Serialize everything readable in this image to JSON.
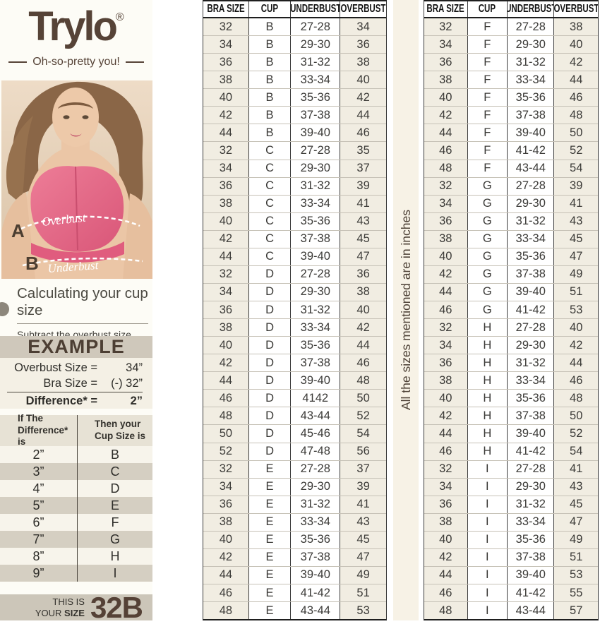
{
  "brand": {
    "logo": "Trylo",
    "registered": "®",
    "tagline": "Oh-so-pretty you!"
  },
  "figure": {
    "label_a": "A",
    "label_b": "B",
    "overbust": "Overbust",
    "underbust": "Underbust"
  },
  "calc": {
    "heading": "Calculating your cup size",
    "body": "Subtract the overbust size from the bra size to detemine your cup size."
  },
  "example": {
    "title": "EXAMPLE",
    "rows": [
      {
        "label": "Overbust Size =",
        "value": "34”"
      },
      {
        "label": "Bra Size =",
        "value": "(-) 32”"
      },
      {
        "label": "Difference* =",
        "value": "2”"
      }
    ]
  },
  "difference_table": {
    "col1_line1": "If The",
    "col1_line2": "Difference* is",
    "col2_line1": "Then your",
    "col2_line2": "Cup Size is",
    "rows": [
      {
        "difference": "2”",
        "cup": "B"
      },
      {
        "difference": "3”",
        "cup": "C"
      },
      {
        "difference": "4”",
        "cup": "D"
      },
      {
        "difference": "5”",
        "cup": "E"
      },
      {
        "difference": "6”",
        "cup": "F"
      },
      {
        "difference": "7”",
        "cup": "G"
      },
      {
        "difference": "8”",
        "cup": "H"
      },
      {
        "difference": "9”",
        "cup": "I"
      }
    ]
  },
  "result": {
    "line1": "THIS IS",
    "line2a": "YOUR ",
    "line2b": "SIZE",
    "size": "32B"
  },
  "note": "All the sizes mentioned are in inches",
  "size_tables": {
    "columns": [
      "BRA SIZE",
      "CUP",
      "UNDERBUST",
      "OVERBUST"
    ],
    "table1": [
      [
        "32",
        "B",
        "27-28",
        "34"
      ],
      [
        "34",
        "B",
        "29-30",
        "36"
      ],
      [
        "36",
        "B",
        "31-32",
        "38"
      ],
      [
        "38",
        "B",
        "33-34",
        "40"
      ],
      [
        "40",
        "B",
        "35-36",
        "42"
      ],
      [
        "42",
        "B",
        "37-38",
        "44"
      ],
      [
        "44",
        "B",
        "39-40",
        "46"
      ],
      [
        "32",
        "C",
        "27-28",
        "35"
      ],
      [
        "34",
        "C",
        "29-30",
        "37"
      ],
      [
        "36",
        "C",
        "31-32",
        "39"
      ],
      [
        "38",
        "C",
        "33-34",
        "41"
      ],
      [
        "40",
        "C",
        "35-36",
        "43"
      ],
      [
        "42",
        "C",
        "37-38",
        "45"
      ],
      [
        "44",
        "C",
        "39-40",
        "47"
      ],
      [
        "32",
        "D",
        "27-28",
        "36"
      ],
      [
        "34",
        "D",
        "29-30",
        "38"
      ],
      [
        "36",
        "D",
        "31-32",
        "40"
      ],
      [
        "38",
        "D",
        "33-34",
        "42"
      ],
      [
        "40",
        "D",
        "35-36",
        "44"
      ],
      [
        "42",
        "D",
        "37-38",
        "46"
      ],
      [
        "44",
        "D",
        "39-40",
        "48"
      ],
      [
        "46",
        "D",
        "4142",
        "50"
      ],
      [
        "48",
        "D",
        "43-44",
        "52"
      ],
      [
        "50",
        "D",
        "45-46",
        "54"
      ],
      [
        "52",
        "D",
        "47-48",
        "56"
      ],
      [
        "32",
        "E",
        "27-28",
        "37"
      ],
      [
        "34",
        "E",
        "29-30",
        "39"
      ],
      [
        "36",
        "E",
        "31-32",
        "41"
      ],
      [
        "38",
        "E",
        "33-34",
        "43"
      ],
      [
        "40",
        "E",
        "35-36",
        "45"
      ],
      [
        "42",
        "E",
        "37-38",
        "47"
      ],
      [
        "44",
        "E",
        "39-40",
        "49"
      ],
      [
        "46",
        "E",
        "41-42",
        "51"
      ],
      [
        "48",
        "E",
        "43-44",
        "53"
      ]
    ],
    "table2": [
      [
        "32",
        "F",
        "27-28",
        "38"
      ],
      [
        "34",
        "F",
        "29-30",
        "40"
      ],
      [
        "36",
        "F",
        "31-32",
        "42"
      ],
      [
        "38",
        "F",
        "33-34",
        "44"
      ],
      [
        "40",
        "F",
        "35-36",
        "46"
      ],
      [
        "42",
        "F",
        "37-38",
        "48"
      ],
      [
        "44",
        "F",
        "39-40",
        "50"
      ],
      [
        "46",
        "F",
        "41-42",
        "52"
      ],
      [
        "48",
        "F",
        "43-44",
        "54"
      ],
      [
        "32",
        "G",
        "27-28",
        "39"
      ],
      [
        "34",
        "G",
        "29-30",
        "41"
      ],
      [
        "36",
        "G",
        "31-32",
        "43"
      ],
      [
        "38",
        "G",
        "33-34",
        "45"
      ],
      [
        "40",
        "G",
        "35-36",
        "47"
      ],
      [
        "42",
        "G",
        "37-38",
        "49"
      ],
      [
        "44",
        "G",
        "39-40",
        "51"
      ],
      [
        "46",
        "G",
        "41-42",
        "53"
      ],
      [
        "32",
        "H",
        "27-28",
        "40"
      ],
      [
        "34",
        "H",
        "29-30",
        "42"
      ],
      [
        "36",
        "H",
        "31-32",
        "44"
      ],
      [
        "38",
        "H",
        "33-34",
        "46"
      ],
      [
        "40",
        "H",
        "35-36",
        "48"
      ],
      [
        "42",
        "H",
        "37-38",
        "50"
      ],
      [
        "44",
        "H",
        "39-40",
        "52"
      ],
      [
        "46",
        "H",
        "41-42",
        "54"
      ],
      [
        "32",
        "I",
        "27-28",
        "41"
      ],
      [
        "34",
        "I",
        "29-30",
        "43"
      ],
      [
        "36",
        "I",
        "31-32",
        "45"
      ],
      [
        "38",
        "I",
        "33-34",
        "47"
      ],
      [
        "40",
        "I",
        "35-36",
        "49"
      ],
      [
        "42",
        "I",
        "37-38",
        "51"
      ],
      [
        "44",
        "I",
        "39-40",
        "53"
      ],
      [
        "46",
        "I",
        "41-42",
        "55"
      ],
      [
        "48",
        "I",
        "43-44",
        "57"
      ]
    ]
  },
  "colors": {
    "brand_brown": "#564337",
    "cream_bg": "#f7f2e6",
    "beige_cell": "#f1ede2",
    "banner_gray": "#cfc8bb",
    "row_gray": "#d5cfc2",
    "bra_pink": "#e4688a"
  }
}
